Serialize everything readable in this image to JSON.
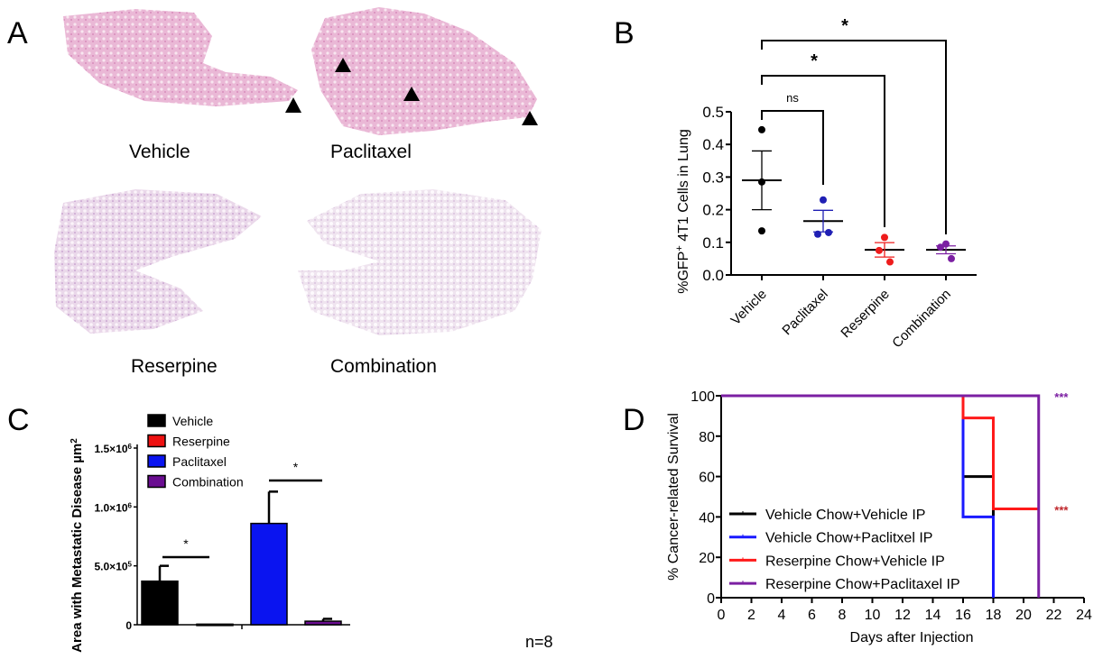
{
  "panels": {
    "a": "A",
    "b": "B",
    "c": "C",
    "d": "D"
  },
  "panel_a": {
    "images": [
      {
        "label": "Vehicle",
        "arrowheads": 1
      },
      {
        "label": "Paclitaxel",
        "arrowheads": 3
      },
      {
        "label": "Reserpine",
        "arrowheads": 0
      },
      {
        "label": "Combination",
        "arrowheads": 0
      }
    ]
  },
  "chart_data": [
    {
      "id": "B",
      "type": "scatter",
      "ylabel": "%GFP+ 4T1 Cells in Lung",
      "ylabel_main": "%GFP",
      "ylabel_sup": "+",
      "ylabel_rest": " 4T1 Cells in Lung",
      "ylim": [
        0,
        0.5
      ],
      "yticks": [
        "0.0",
        "0.1",
        "0.2",
        "0.3",
        "0.4",
        "0.5"
      ],
      "categories": [
        "Vehicle",
        "Paclitaxel",
        "Reserpine",
        "Combination"
      ],
      "colors": [
        "#000000",
        "#1f1fb4",
        "#ee1c1c",
        "#7b1fa2"
      ],
      "points": [
        [
          0.445,
          0.285,
          0.135
        ],
        [
          0.23,
          0.125,
          0.13
        ],
        [
          0.115,
          0.075,
          0.04
        ],
        [
          0.095,
          0.085,
          0.05
        ]
      ],
      "mean": [
        0.29,
        0.165,
        0.077,
        0.077
      ],
      "sem": [
        0.09,
        0.033,
        0.022,
        0.012
      ],
      "comparisons": [
        {
          "from": "Vehicle",
          "to": "Paclitaxel",
          "label": "ns"
        },
        {
          "from": "Vehicle",
          "to": "Reserpine",
          "label": "*"
        },
        {
          "from": "Vehicle",
          "to": "Combination",
          "label": "*"
        }
      ]
    },
    {
      "id": "C",
      "type": "bar",
      "ylabel": "Area with Metastatic Disease  µm",
      "ylabel_sup": "2",
      "ylim": [
        0,
        1500000
      ],
      "yticks": [
        {
          "v": 0,
          "base": "0",
          "exp": ""
        },
        {
          "v": 500000,
          "base": "5.0×10",
          "exp": "5"
        },
        {
          "v": 1000000,
          "base": "1.0×10",
          "exp": "6"
        },
        {
          "v": 1500000,
          "base": "1.5×10",
          "exp": "6"
        }
      ],
      "categories": [
        "Vehicle",
        "Reserpine",
        "Paclitaxel",
        "Combination"
      ],
      "colors": [
        "#000000",
        "#ee1111",
        "#0a14f0",
        "#6a0d91"
      ],
      "values": [
        370000,
        5000,
        860000,
        30000
      ],
      "errors": [
        130000,
        0,
        270000,
        20000
      ],
      "comparisons": [
        {
          "from": "Vehicle",
          "to": "Reserpine",
          "label": "*"
        },
        {
          "from": "Paclitaxel",
          "to": "Combination",
          "label": "*"
        }
      ],
      "legend": "top-left",
      "note": "n=8"
    },
    {
      "id": "D",
      "type": "line",
      "xlabel": "Days after Injection",
      "ylabel": "% Cancer-related Survival",
      "xlim": [
        0,
        24
      ],
      "ylim": [
        0,
        100
      ],
      "xticks": [
        "0",
        "2",
        "4",
        "6",
        "8",
        "10",
        "12",
        "14",
        "16",
        "18",
        "20",
        "22",
        "24"
      ],
      "yticks": [
        "0",
        "20",
        "40",
        "60",
        "80",
        "100"
      ],
      "series": [
        {
          "name": "Vehicle Chow+Vehicle IP",
          "color": "#000000",
          "x": [
            0,
            16,
            16,
            18,
            18
          ],
          "y": [
            100,
            100,
            60,
            60,
            0
          ]
        },
        {
          "name": "Vehicle Chow+Paclitxel IP",
          "color": "#1a1aff",
          "x": [
            0,
            16,
            16,
            18,
            18
          ],
          "y": [
            100,
            100,
            40,
            40,
            0
          ]
        },
        {
          "name": "Reserpine Chow+Vehicle IP",
          "color": "#ff1a1a",
          "x": [
            0,
            16,
            16,
            18,
            18,
            21
          ],
          "y": [
            100,
            100,
            89,
            89,
            44,
            44
          ]
        },
        {
          "name": "Reserpine Chow+Paclitaxel IP",
          "color": "#7b1fa2",
          "x": [
            0,
            21,
            21
          ],
          "y": [
            100,
            100,
            0
          ]
        }
      ],
      "annotations": [
        {
          "text": "***",
          "x": 22.5,
          "y": 100,
          "color": "#7b1fa2"
        },
        {
          "text": "***",
          "x": 22.5,
          "y": 44,
          "color": "#c0282d"
        }
      ],
      "legend": "bottom-left"
    }
  ]
}
